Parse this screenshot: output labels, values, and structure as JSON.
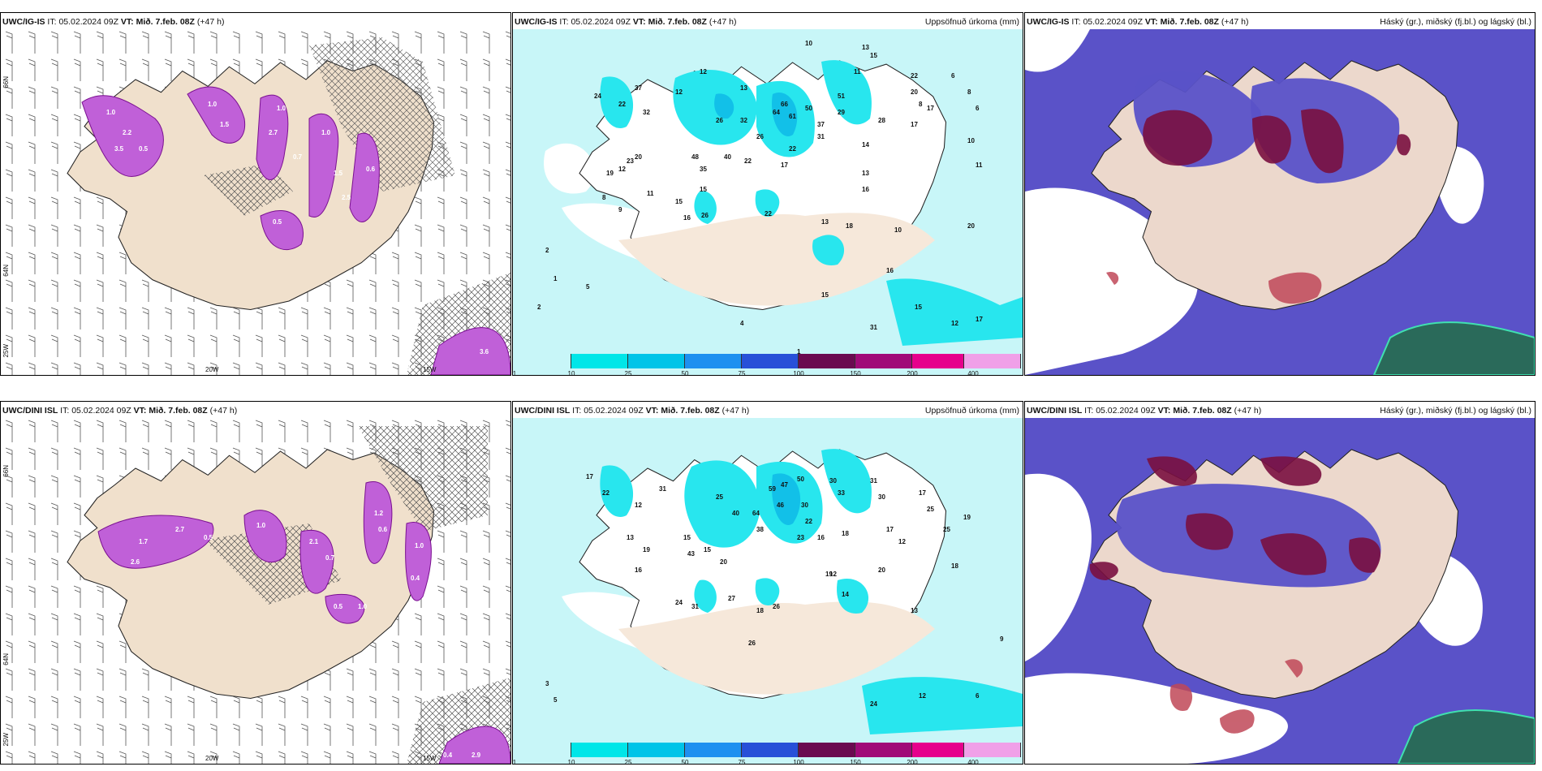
{
  "panels": [
    {
      "model": "UWC/IG-IS",
      "it_label": "IT:",
      "it": "05.02.2024 09Z",
      "vt_label": "VT:",
      "vt": "Mið. 7.feb. 08Z",
      "lead": "(+47 h)",
      "title": ""
    },
    {
      "model": "UWC/IG-IS",
      "it_label": "IT:",
      "it": "05.02.2024 09Z",
      "vt_label": "VT:",
      "vt": "Mið. 7.feb. 08Z",
      "lead": "(+47 h)",
      "title": "Uppsöfnuð úrkoma (mm)"
    },
    {
      "model": "UWC/IG-IS",
      "it_label": "IT:",
      "it": "05.02.2024 09Z",
      "vt_label": "VT:",
      "vt": "Mið. 7.feb. 08Z",
      "lead": "(+47 h)",
      "title": "Háský (gr.), miðský (fj.bl.) og lágský (bl.)"
    },
    {
      "model": "UWC/DINI ISL",
      "it_label": "IT:",
      "it": "05.02.2024 09Z",
      "vt_label": "VT:",
      "vt": "Mið. 7.feb. 08Z",
      "lead": "(+47 h)",
      "title": ""
    },
    {
      "model": "UWC/DINI ISL",
      "it_label": "IT:",
      "it": "05.02.2024 09Z",
      "vt_label": "VT:",
      "vt": "Mið. 7.feb. 08Z",
      "lead": "(+47 h)",
      "title": "Uppsöfnuð úrkoma (mm)"
    },
    {
      "model": "UWC/DINI ISL",
      "it_label": "IT:",
      "it": "05.02.2024 09Z",
      "vt_label": "VT:",
      "vt": "Mið. 7.feb. 08Z",
      "lead": "(+47 h)",
      "title": "Háský (gr.), miðský (fj.bl.) og lágský (bl.)"
    }
  ],
  "map_labels": {
    "lon_20w": "20W",
    "lon_15w": "15W",
    "lat_66n": "66N",
    "lat_64n": "64N",
    "lon_25w": "25W"
  },
  "precip_legend": {
    "ticks": [
      "1",
      "10",
      "25",
      "50",
      "75",
      "100",
      "150",
      "200",
      "400"
    ],
    "colors": [
      "#c8f6f8",
      "#00e6e8",
      "#00c4e8",
      "#1e90f0",
      "#2850d8",
      "#3a2fa8",
      "#6a0a50",
      "#a00a78",
      "#e6008c",
      "#f0a0e8"
    ]
  },
  "precip_values_top": [
    "10",
    "13",
    "15",
    "12",
    "11",
    "22",
    "20",
    "8",
    "6",
    "8",
    "6",
    "17",
    "37",
    "22",
    "24",
    "12",
    "13",
    "51",
    "29",
    "28",
    "17",
    "26",
    "32",
    "26",
    "32",
    "64",
    "61",
    "66",
    "50",
    "37",
    "31",
    "22",
    "17",
    "20",
    "14",
    "10",
    "11",
    "13",
    "16",
    "12",
    "23",
    "19",
    "15",
    "48",
    "35",
    "40",
    "22",
    "15",
    "8",
    "9",
    "16",
    "26",
    "22",
    "13",
    "10",
    "18",
    "20",
    "11",
    "15",
    "12",
    "2",
    "1",
    "2",
    "5",
    "31",
    "16",
    "17",
    "15",
    "1",
    "4"
  ],
  "precip_values_bottom": [
    "17",
    "22",
    "31",
    "12",
    "30",
    "25",
    "40",
    "33",
    "59",
    "47",
    "50",
    "31",
    "30",
    "17",
    "25",
    "19",
    "64",
    "46",
    "30",
    "22",
    "38",
    "23",
    "16",
    "18",
    "17",
    "12",
    "25",
    "13",
    "19",
    "15",
    "15",
    "20",
    "16",
    "43",
    "27",
    "18",
    "26",
    "12",
    "14",
    "13",
    "24",
    "31",
    "18",
    "19",
    "20",
    "26",
    "24",
    "12",
    "5",
    "3",
    "6",
    "9"
  ],
  "snow_values_top": [
    "1.0",
    "2.2",
    "0.5",
    "3.5",
    "1.0",
    "1.5",
    "2.7",
    "1.0",
    "0.7",
    "1.0",
    "1.5",
    "0.6",
    "0.5",
    "2.5"
  ],
  "snow_values_bottom": [
    "2.7",
    "1.7",
    "2.6",
    "0.5",
    "1.0",
    "2.1",
    "0.7",
    "1.2",
    "0.6",
    "1.0",
    "0.5",
    "1.0",
    "0.4"
  ],
  "corner_values_top": [
    "0.4",
    "3.6"
  ],
  "corner_values_bottom": [
    "0.4",
    "2.9"
  ]
}
